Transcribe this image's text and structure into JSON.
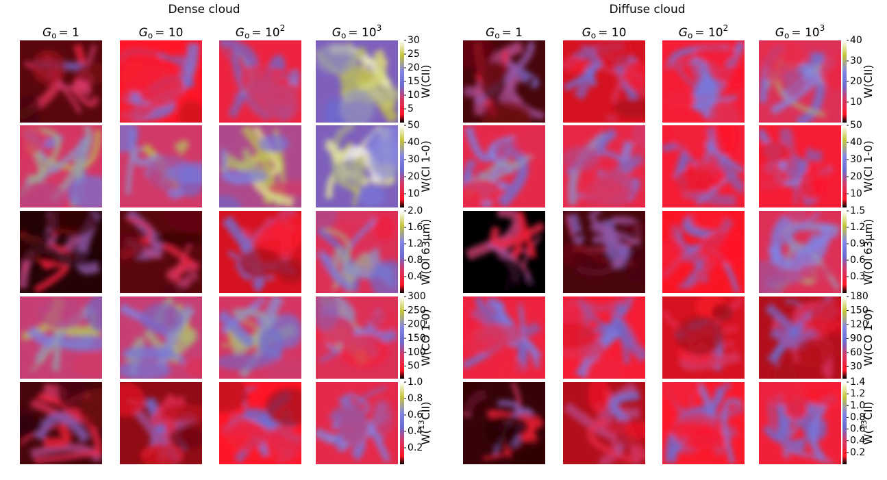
{
  "groups": [
    {
      "title": "Dense cloud",
      "columns": [
        {
          "symbol": "G",
          "subscript": "o",
          "value": "= 1"
        },
        {
          "symbol": "G",
          "subscript": "o",
          "value": "= 10"
        },
        {
          "symbol": "G",
          "subscript": "o",
          "value": "= 10",
          "exponent": "2"
        },
        {
          "symbol": "G",
          "subscript": "o",
          "value": "= 10",
          "exponent": "3"
        }
      ],
      "rows": [
        {
          "label": "W(CII)",
          "ylim": [
            0,
            30
          ],
          "yticks": [
            5,
            10,
            15,
            20,
            25,
            30
          ]
        },
        {
          "label": "W(CI 1-0)",
          "ylim": [
            2,
            50
          ],
          "yticks": [
            10,
            20,
            30,
            40,
            50
          ]
        },
        {
          "label": "W(OI 63μm)",
          "ylim": [
            0,
            2
          ],
          "yticks": [
            0.4,
            0.8,
            1.2,
            1.6,
            {
              "value": 2,
              "label": "2.0"
            }
          ]
        },
        {
          "label": "W(CO 1-0)",
          "ylim": [
            5,
            300
          ],
          "yticks": [
            50,
            100,
            150,
            200,
            250,
            300
          ]
        },
        {
          "label": {
            "prefix": "W(",
            "sup": "13",
            "suffix": "CII)"
          },
          "ylim": [
            0,
            1
          ],
          "yticks": [
            0.2,
            0.4,
            0.6,
            0.8,
            {
              "value": 1,
              "label": "1.0"
            }
          ]
        }
      ]
    },
    {
      "title": "Diffuse cloud",
      "columns": [
        {
          "symbol": "G",
          "subscript": "o",
          "value": "= 1"
        },
        {
          "symbol": "G",
          "subscript": "o",
          "value": "= 10"
        },
        {
          "symbol": "G",
          "subscript": "o",
          "value": "= 10",
          "exponent": "2"
        },
        {
          "symbol": "G",
          "subscript": "o",
          "value": "= 10",
          "exponent": "3"
        }
      ],
      "rows": [
        {
          "label": "W(CII)",
          "ylim": [
            0,
            40
          ],
          "yticks": [
            10,
            20,
            30,
            40
          ]
        },
        {
          "label": "W(CI 1-0)",
          "ylim": [
            2,
            50
          ],
          "yticks": [
            10,
            20,
            30,
            40,
            50
          ]
        },
        {
          "label": "W(OI 63μm)",
          "ylim": [
            0,
            1.5
          ],
          "yticks": [
            0.3,
            0.6,
            0.9,
            1.2,
            1.5
          ]
        },
        {
          "label": "W(CO 1-0)",
          "ylim": [
            4,
            180
          ],
          "yticks": [
            30,
            60,
            90,
            120,
            150,
            180
          ]
        },
        {
          "label": {
            "prefix": "W(",
            "sup": "13",
            "suffix": "CII)"
          },
          "ylim": [
            0,
            1.4
          ],
          "yticks": [
            0.2,
            0.4,
            0.6,
            0.8,
            {
              "value": 1,
              "label": "1.0"
            },
            1.2,
            1.4
          ]
        }
      ]
    }
  ]
}
